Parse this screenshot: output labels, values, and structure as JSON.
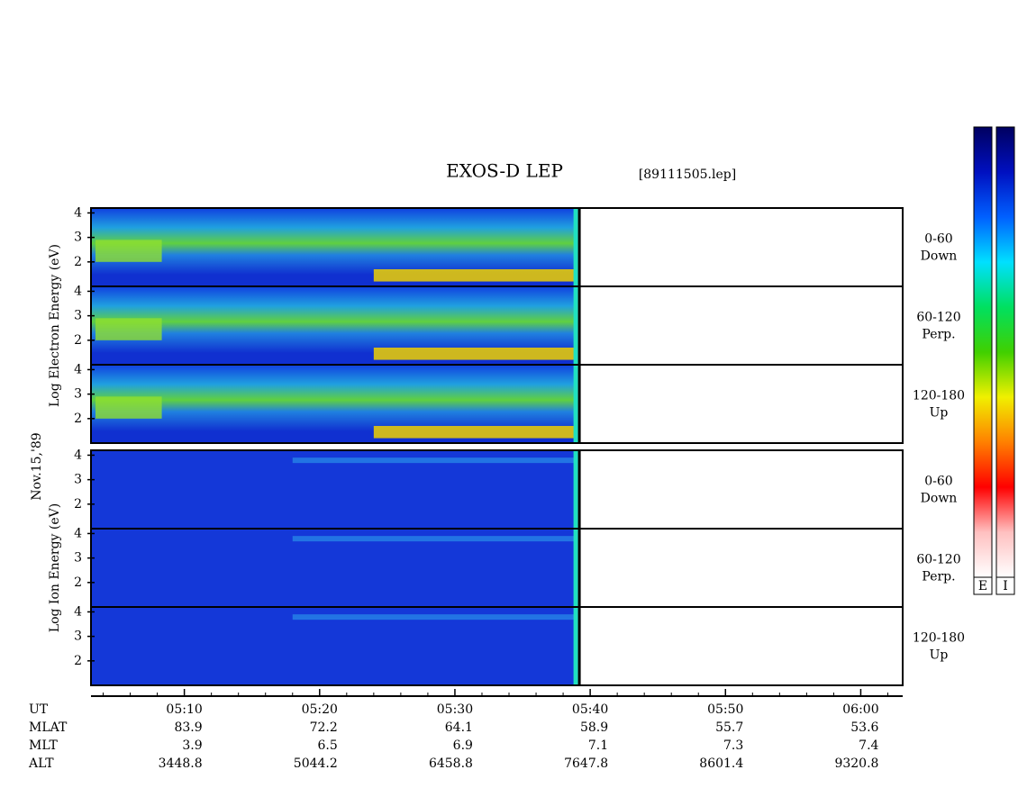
{
  "chart_data": {
    "type": "spectrogram",
    "title": "EXOS-D LEP",
    "file": "[89111505.lep]",
    "date": "Nov.15,'89",
    "xlim": [
      3.1,
      63.1
    ],
    "data_end": 39.1,
    "xticks": [
      {
        "value": 10,
        "label": "05:10"
      },
      {
        "value": 20,
        "label": "05:20"
      },
      {
        "value": 30,
        "label": "05:30"
      },
      {
        "value": 40,
        "label": "05:40"
      },
      {
        "value": 50,
        "label": "05:50"
      },
      {
        "value": 60,
        "label": "06:00"
      }
    ],
    "xminor": [
      4,
      6,
      8,
      12,
      14,
      16,
      18,
      22,
      24,
      26,
      28,
      32,
      34,
      36,
      38,
      42,
      44,
      46,
      48,
      52,
      54,
      56,
      58,
      62
    ],
    "ylim": [
      1,
      4.2
    ],
    "yticks": [
      2,
      3,
      4
    ],
    "groups": [
      {
        "ylabel": "Log Electron Energy (eV)",
        "panels": [
          {
            "angle": "0-60",
            "dir": "Down"
          },
          {
            "angle": "60-120",
            "dir": "Perp."
          },
          {
            "angle": "120-180",
            "dir": "Up"
          }
        ]
      },
      {
        "ylabel": "Log Ion Energy (eV)",
        "panels": [
          {
            "angle": "0-60",
            "dir": "Down"
          },
          {
            "angle": "60-120",
            "dir": "Perp."
          },
          {
            "angle": "120-180",
            "dir": "Up"
          }
        ]
      }
    ],
    "ephemeris": [
      {
        "name": "UT",
        "values": []
      },
      {
        "name": "MLAT",
        "values": [
          "83.9",
          "72.2",
          "64.1",
          "58.9",
          "55.7",
          "53.6"
        ]
      },
      {
        "name": "MLT",
        "values": [
          "3.9",
          "6.5",
          "6.9",
          "7.1",
          "7.3",
          "7.4"
        ]
      },
      {
        "name": "ALT",
        "values": [
          "3448.8",
          "5044.2",
          "6458.8",
          "7647.8",
          "8601.4",
          "9320.8"
        ]
      }
    ],
    "colorbars": [
      "E",
      "I"
    ],
    "colormap": [
      "#000060",
      "#0010c0",
      "#0060ff",
      "#00e0ff",
      "#00e060",
      "#40d000",
      "#f0f000",
      "#ff8000",
      "#ff0000",
      "#ffc0c0",
      "#ffffff"
    ]
  }
}
